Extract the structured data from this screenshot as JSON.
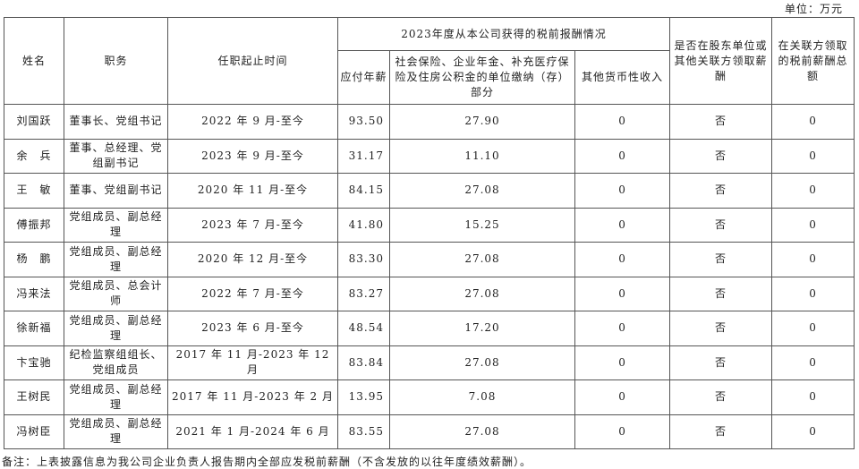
{
  "unit_label": "单位：万元",
  "headers": {
    "name": "姓名",
    "position": "职务",
    "tenure": "任职起止时间",
    "group": "2023年度从本公司获得的税前报酬情况",
    "salary": "应付年薪",
    "insurance": "社会保险、企业年金、补充医疗保险及住房公积金的单位缴纳（存）部分",
    "other_income": "其他货币性收入",
    "shareholder_pay": "是否在股东单位或其他关联方领取薪酬",
    "related_total": "在关联方领取的税前薪酬总额"
  },
  "rows": [
    {
      "name": "刘国跃",
      "position": "董事长、党组书记",
      "tenure": "2022 年 9 月-至今",
      "salary": "93.50",
      "insurance": "27.90",
      "other": "0",
      "shareholder": "否",
      "related": "0"
    },
    {
      "name": "余　兵",
      "position": "董事、总经理、党组副书记",
      "tenure": "2023 年 9 月-至今",
      "salary": "31.17",
      "insurance": "11.10",
      "other": "0",
      "shareholder": "否",
      "related": "0"
    },
    {
      "name": "王　敏",
      "position": "董事、党组副书记",
      "tenure": "2020 年 11 月-至今",
      "salary": "84.15",
      "insurance": "27.08",
      "other": "0",
      "shareholder": "否",
      "related": "0"
    },
    {
      "name": "傅振邦",
      "position": "党组成员、副总经理",
      "tenure": "2023 年 7 月-至今",
      "salary": "41.80",
      "insurance": "15.25",
      "other": "0",
      "shareholder": "否",
      "related": "0"
    },
    {
      "name": "杨　鹏",
      "position": "党组成员、副总经理",
      "tenure": "2020 年 12 月-至今",
      "salary": "83.30",
      "insurance": "27.08",
      "other": "0",
      "shareholder": "否",
      "related": "0"
    },
    {
      "name": "冯来法",
      "position": "党组成员、总会计师",
      "tenure": "2022 年 7 月-至今",
      "salary": "83.27",
      "insurance": "27.08",
      "other": "0",
      "shareholder": "否",
      "related": "0"
    },
    {
      "name": "徐新福",
      "position": "党组成员、副总经理",
      "tenure": "2023 年 6 月-至今",
      "salary": "48.54",
      "insurance": "17.20",
      "other": "0",
      "shareholder": "否",
      "related": "0"
    },
    {
      "name": "卞宝驰",
      "position": "纪检监察组组长、党组成员",
      "tenure": "2017 年 11 月-2023 年 12 月",
      "salary": "83.84",
      "insurance": "27.08",
      "other": "0",
      "shareholder": "否",
      "related": "0"
    },
    {
      "name": "王树民",
      "position": "党组成员、副总经理",
      "tenure": "2017 年 11 月-2023 年 2 月",
      "salary": "13.95",
      "insurance": "7.08",
      "other": "0",
      "shareholder": "否",
      "related": "0"
    },
    {
      "name": "冯树臣",
      "position": "党组成员、副总经理",
      "tenure": "2021 年 1 月-2024 年 6 月",
      "salary": "83.55",
      "insurance": "27.08",
      "other": "0",
      "shareholder": "否",
      "related": "0"
    }
  ],
  "footnote": "备注：上表披露信息为我公司企业负责人报告期内全部应发税前薪酬（不含发放的以往年度绩效薪酬）。"
}
